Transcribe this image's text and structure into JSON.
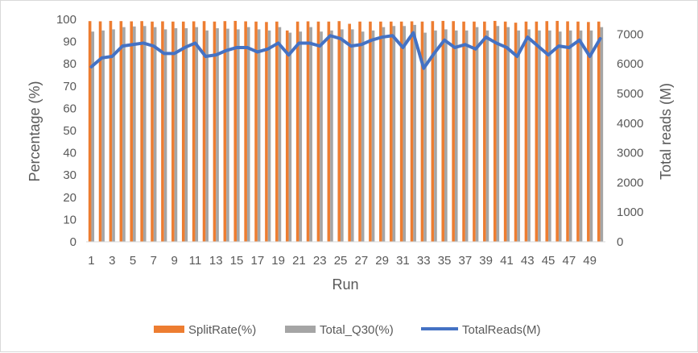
{
  "chart_data": {
    "type": "bar",
    "xlabel": "Run",
    "ylabel": "Percentage (%)",
    "y2label": "Total reads (M)",
    "ylim": [
      0,
      100
    ],
    "y2lim": [
      0,
      7500
    ],
    "yticks": [
      0,
      10,
      20,
      30,
      40,
      50,
      60,
      70,
      80,
      90,
      100
    ],
    "y2ticks": [
      0,
      1000,
      2000,
      3000,
      4000,
      5000,
      6000,
      7000
    ],
    "x_tick_labels": [
      "1",
      "3",
      "5",
      "7",
      "9",
      "11",
      "13",
      "15",
      "17",
      "19",
      "21",
      "23",
      "25",
      "27",
      "29",
      "31",
      "33",
      "35",
      "37",
      "39",
      "41",
      "43",
      "45",
      "47",
      "49"
    ],
    "categories": [
      "1",
      "2",
      "3",
      "4",
      "5",
      "6",
      "7",
      "8",
      "9",
      "10",
      "11",
      "12",
      "13",
      "14",
      "15",
      "16",
      "17",
      "18",
      "19",
      "20",
      "21",
      "22",
      "23",
      "24",
      "25",
      "26",
      "27",
      "28",
      "29",
      "30",
      "31",
      "32",
      "33",
      "34",
      "35",
      "36",
      "37",
      "38",
      "39",
      "40",
      "41",
      "42",
      "43",
      "44",
      "45",
      "46",
      "47",
      "48",
      "49",
      "50"
    ],
    "legend_position": "bottom",
    "grid": false,
    "series": [
      {
        "name": "SplitRate(%)",
        "kind": "bar",
        "axis": "left",
        "color": "#ed7d31",
        "values": [
          99.2,
          99.1,
          99.3,
          99.2,
          99.1,
          99.2,
          99.0,
          99.1,
          99.0,
          99.0,
          99.1,
          99.2,
          99.0,
          99.2,
          99.3,
          99.1,
          99.0,
          98.8,
          99.0,
          95.0,
          99.0,
          99.1,
          99.0,
          99.0,
          99.2,
          98.0,
          99.0,
          99.0,
          99.0,
          99.0,
          99.0,
          99.1,
          99.0,
          99.2,
          99.3,
          99.2,
          99.0,
          99.0,
          99.0,
          99.3,
          99.0,
          98.5,
          99.0,
          99.0,
          99.2,
          99.3,
          99.1,
          99.0,
          98.8,
          99.0
        ]
      },
      {
        "name": "Total_Q30(%)",
        "kind": "bar",
        "axis": "left",
        "color": "#a5a5a5",
        "values": [
          94.5,
          95.0,
          95.5,
          96.5,
          96.8,
          97.0,
          96.5,
          95.5,
          96.0,
          96.0,
          96.5,
          95.0,
          96.0,
          95.8,
          95.5,
          96.5,
          95.5,
          95.0,
          96.5,
          94.0,
          94.5,
          96.5,
          94.5,
          95.0,
          95.5,
          95.5,
          94.5,
          95.0,
          96.5,
          97.0,
          97.0,
          97.5,
          94.0,
          95.0,
          95.5,
          95.0,
          95.0,
          96.5,
          95.0,
          97.0,
          96.5,
          95.0,
          95.5,
          95.0,
          95.0,
          94.5,
          95.0,
          95.0,
          95.0,
          96.5
        ]
      },
      {
        "name": "TotalReads(M)",
        "kind": "line",
        "axis": "right",
        "color": "#4472c4",
        "values": [
          5900,
          6200,
          6250,
          6600,
          6650,
          6700,
          6600,
          6350,
          6350,
          6550,
          6700,
          6250,
          6300,
          6450,
          6550,
          6550,
          6400,
          6500,
          6700,
          6300,
          6700,
          6700,
          6600,
          6950,
          6850,
          6600,
          6650,
          6800,
          6900,
          6950,
          6550,
          7050,
          5850,
          6350,
          6800,
          6550,
          6650,
          6500,
          6900,
          6700,
          6550,
          6250,
          6900,
          6600,
          6300,
          6600,
          6550,
          6800,
          6250,
          6850
        ]
      }
    ]
  }
}
